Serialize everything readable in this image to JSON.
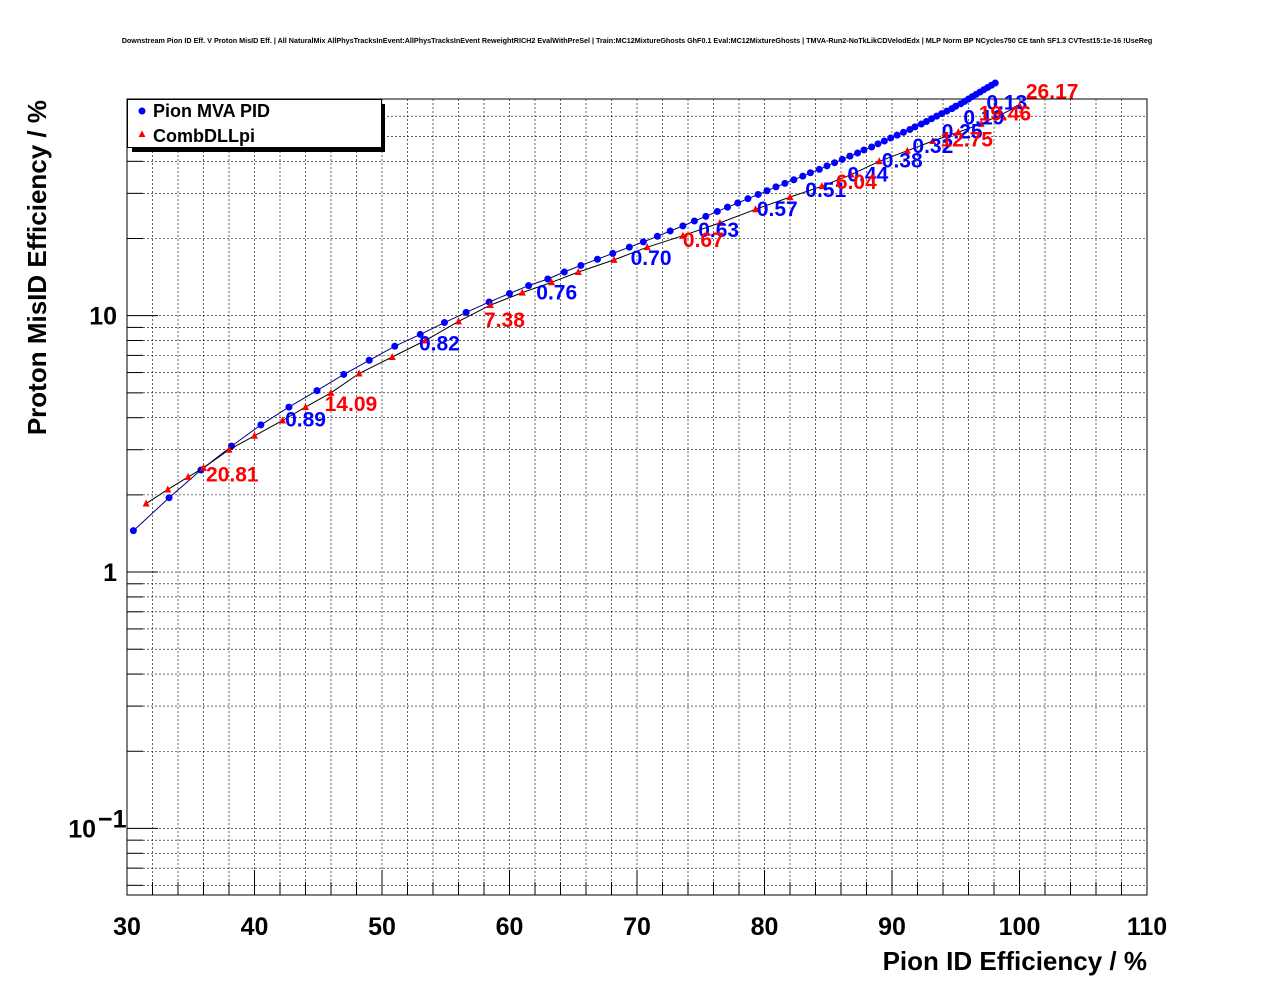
{
  "chart_data": {
    "type": "scatter",
    "title": "Downstream Pion ID Eff. V Proton MisID Eff. | All NaturalMix AllPhysTracksInEvent:AllPhysTracksInEvent ReweightRICH2 EvalWithPreSel | Train:MC12MixtureGhosts GhF0.1 Eval:MC12MixtureGhosts | TMVA-Run2-NoTkLikCDVelodEdx | MLP Norm BP NCycles750 CE tanh SF1.3 CVTest15:1e-16 !UseReg",
    "xlabel": "Pion ID Efficiency / %",
    "ylabel": "Proton MisID Efficiency / %",
    "xlim": [
      30,
      110
    ],
    "ylim": [
      0.055,
      70
    ],
    "y_scale": "log",
    "grid": true,
    "legend_position": "top-left",
    "x_ticks": [
      "30",
      "40",
      "50",
      "60",
      "70",
      "80",
      "90",
      "100",
      "110"
    ],
    "y_ticks": [
      {
        "value": 10,
        "label": "10"
      },
      {
        "value": 1,
        "label": "1"
      },
      {
        "value": 0.1,
        "label": "10",
        "sup": "−1"
      }
    ],
    "series": [
      {
        "name": "Pion MVA PID",
        "color": "#0000ff",
        "marker": "circle",
        "x": [
          30.5,
          33.3,
          35.8,
          38.2,
          40.5,
          42.7,
          44.9,
          47.0,
          49.0,
          51.0,
          53.0,
          54.9,
          56.6,
          58.4,
          60.0,
          61.5,
          63.0,
          64.3,
          65.6,
          66.9,
          68.1,
          69.4,
          70.5,
          71.6,
          72.6,
          73.6,
          74.5,
          75.4,
          76.3,
          77.1,
          77.9,
          78.7,
          79.5,
          80.2,
          80.9,
          81.6,
          82.3,
          83.0,
          83.6,
          84.3,
          84.9,
          85.5,
          86.1,
          86.7,
          87.3,
          87.8,
          88.4,
          88.9,
          89.4,
          89.9,
          90.4,
          90.9,
          91.4,
          91.8,
          92.3,
          92.7,
          93.1,
          93.5,
          93.9,
          94.3,
          94.7,
          95.0,
          95.4,
          95.7,
          96.0,
          96.3,
          96.6,
          96.9,
          97.2,
          97.5,
          97.8,
          98.1
        ],
        "y": [
          1.45,
          1.95,
          2.5,
          3.1,
          3.75,
          4.4,
          5.1,
          5.9,
          6.7,
          7.6,
          8.45,
          9.4,
          10.3,
          11.3,
          12.2,
          13.1,
          13.9,
          14.8,
          15.7,
          16.6,
          17.5,
          18.5,
          19.4,
          20.4,
          21.4,
          22.4,
          23.4,
          24.4,
          25.5,
          26.5,
          27.5,
          28.6,
          29.7,
          30.7,
          31.8,
          32.8,
          33.9,
          35.0,
          36.1,
          37.2,
          38.4,
          39.5,
          40.7,
          41.9,
          43.1,
          44.3,
          45.5,
          46.8,
          48.0,
          49.3,
          50.6,
          51.9,
          53.2,
          54.5,
          55.9,
          57.2,
          58.6,
          60.0,
          61.4,
          62.8,
          64.2,
          65.6,
          67.1,
          68.5,
          70.0,
          71.5,
          73.0,
          74.5,
          76.1,
          77.6,
          79.2,
          80.8
        ]
      },
      {
        "name": "CombDLLpi",
        "color": "#ff0000",
        "marker": "triangle",
        "x": [
          31.5,
          33.2,
          34.8,
          36.0,
          38.0,
          40.0,
          42.2,
          44.0,
          46.0,
          48.2,
          50.8,
          53.4,
          56.0,
          58.5,
          61.0,
          63.3,
          65.4,
          68.2,
          70.8,
          73.6,
          76.5,
          79.3,
          82.0,
          84.5,
          86.8,
          89.0,
          91.2,
          93.2,
          95.2,
          97.0,
          98.6,
          100.0
        ],
        "y": [
          1.85,
          2.1,
          2.35,
          2.55,
          3.0,
          3.4,
          3.9,
          4.4,
          5.0,
          5.95,
          6.9,
          8.0,
          9.5,
          11.0,
          12.3,
          13.5,
          14.8,
          16.5,
          18.5,
          20.5,
          23.0,
          26.0,
          29.0,
          32.0,
          35.5,
          40.0,
          44.0,
          48.0,
          52.0,
          56.0,
          61.0,
          66.0
        ]
      }
    ],
    "annotations": [
      {
        "text": "0.89",
        "x": 42.4,
        "y": 3.98,
        "color": "#0000ff"
      },
      {
        "text": "0.82",
        "x": 52.9,
        "y": 7.85,
        "color": "#0000ff"
      },
      {
        "text": "0.76",
        "x": 62.1,
        "y": 12.4,
        "color": "#0000ff"
      },
      {
        "text": "0.70",
        "x": 69.5,
        "y": 16.9,
        "color": "#0000ff"
      },
      {
        "text": "0.63",
        "x": 74.8,
        "y": 21.8,
        "color": "#0000ff"
      },
      {
        "text": "0.57",
        "x": 79.4,
        "y": 26.3,
        "color": "#0000ff"
      },
      {
        "text": "0.51",
        "x": 83.2,
        "y": 31.2,
        "color": "#0000ff"
      },
      {
        "text": "0.44",
        "x": 86.5,
        "y": 35.8,
        "color": "#0000ff"
      },
      {
        "text": "0.38",
        "x": 89.2,
        "y": 40.7,
        "color": "#0000ff"
      },
      {
        "text": "0.32",
        "x": 91.6,
        "y": 46.4,
        "color": "#0000ff"
      },
      {
        "text": "0.25",
        "x": 93.9,
        "y": 52.8,
        "color": "#0000ff"
      },
      {
        "text": "0.19",
        "x": 95.6,
        "y": 59.7,
        "color": "#0000ff"
      },
      {
        "text": "0.13",
        "x": 97.4,
        "y": 68.5,
        "color": "#0000ff"
      },
      {
        "text": "20.81",
        "x": 36.2,
        "y": 2.42,
        "color": "#ff0000"
      },
      {
        "text": "14.09",
        "x": 45.5,
        "y": 4.56,
        "color": "#ff0000"
      },
      {
        "text": "7.38",
        "x": 58.0,
        "y": 9.72,
        "color": "#ff0000"
      },
      {
        "text": "0.67",
        "x": 73.6,
        "y": 19.9,
        "color": "#ff0000"
      },
      {
        "text": "6.04",
        "x": 85.6,
        "y": 33.5,
        "color": "#ff0000"
      },
      {
        "text": "12.75",
        "x": 93.8,
        "y": 49.2,
        "color": "#ff0000"
      },
      {
        "text": "19.46",
        "x": 96.8,
        "y": 62.0,
        "color": "#ff0000"
      },
      {
        "text": "26.17",
        "x": 100.5,
        "y": 75.5,
        "color": "#ff0000"
      }
    ]
  }
}
